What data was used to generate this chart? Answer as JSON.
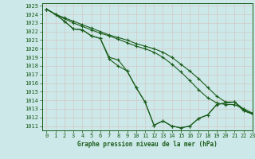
{
  "background_color": "#cce8e8",
  "grid_color": "#c8d8d8",
  "line_color": "#1a5c1a",
  "title": "Graphe pression niveau de la mer (hPa)",
  "xlim": [
    -0.5,
    23
  ],
  "ylim": [
    1010.5,
    1025.3
  ],
  "xticks": [
    0,
    1,
    2,
    3,
    4,
    5,
    6,
    7,
    8,
    9,
    10,
    11,
    12,
    13,
    14,
    15,
    16,
    17,
    18,
    19,
    20,
    21,
    22,
    23
  ],
  "yticks": [
    1011,
    1012,
    1013,
    1014,
    1015,
    1016,
    1017,
    1018,
    1019,
    1020,
    1021,
    1022,
    1023,
    1024,
    1025
  ],
  "series_zigzag1": [
    1024.6,
    1024.0,
    1023.2,
    1022.3,
    1022.2,
    1021.5,
    1021.2,
    1019.0,
    1018.7,
    1017.4,
    1015.5,
    1013.8,
    1011.1,
    1011.6,
    1011.0,
    1010.8,
    1011.0,
    1011.9,
    1012.3,
    1013.5,
    1013.7,
    1013.8,
    1012.8,
    1012.4
  ],
  "series_zigzag2": [
    1024.6,
    1024.0,
    1023.2,
    1022.3,
    1022.2,
    1021.5,
    1021.2,
    1018.8,
    1018.0,
    1017.4,
    1015.5,
    1013.8,
    1011.1,
    1011.6,
    1011.0,
    1010.8,
    1011.0,
    1011.9,
    1012.3,
    1013.5,
    1013.7,
    1013.8,
    1012.8,
    1012.4
  ],
  "series_smooth1": [
    1024.6,
    1024.0,
    1023.5,
    1023.0,
    1022.6,
    1022.2,
    1021.8,
    1021.5,
    1021.1,
    1020.7,
    1020.3,
    1020.0,
    1019.6,
    1019.0,
    1018.2,
    1017.3,
    1016.3,
    1015.2,
    1014.3,
    1013.7,
    1013.5,
    1013.5,
    1013.0,
    1012.5
  ],
  "series_smooth2": [
    1024.6,
    1024.0,
    1023.6,
    1023.2,
    1022.8,
    1022.4,
    1022.0,
    1021.6,
    1021.3,
    1021.0,
    1020.6,
    1020.3,
    1020.0,
    1019.6,
    1019.0,
    1018.2,
    1017.4,
    1016.5,
    1015.5,
    1014.5,
    1013.8,
    1013.8,
    1013.0,
    1012.5
  ]
}
